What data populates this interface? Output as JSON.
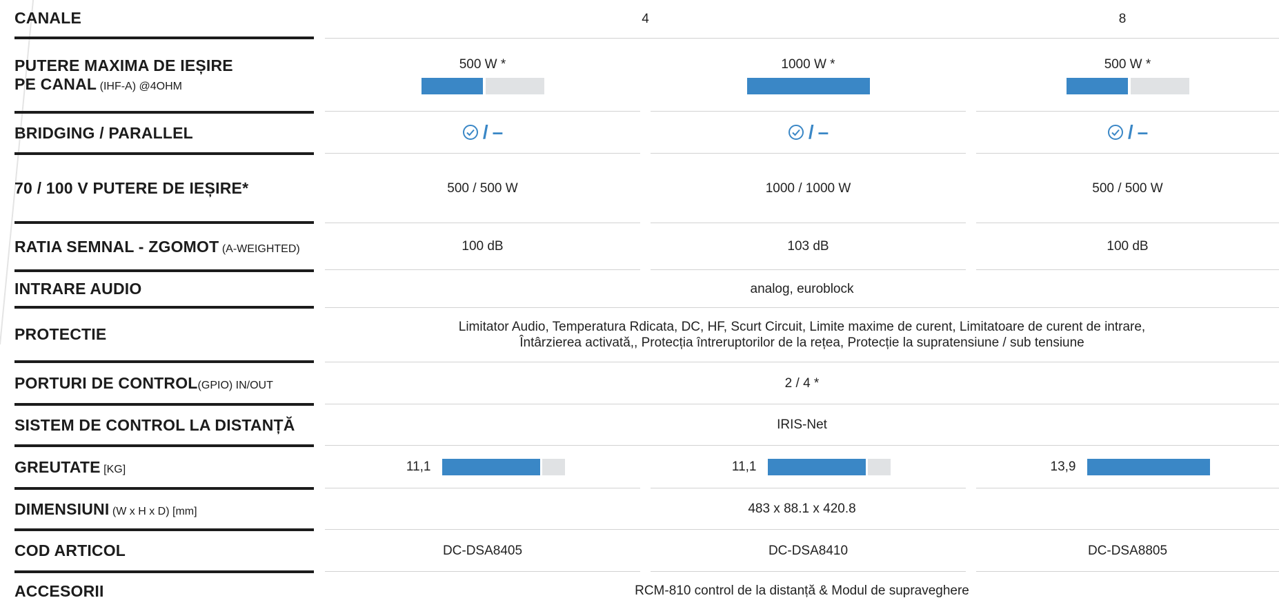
{
  "rows": {
    "channels": {
      "label": "CANALE",
      "values": [
        "4",
        "8"
      ]
    },
    "max_power": {
      "label_main": "PUTERE MAXIMA DE IEȘIRE",
      "label_main2": "PE CANAL",
      "label_sub": "(IHF-A) @4OHM",
      "values": [
        "500 W *",
        "1000 W *",
        "500 W *"
      ],
      "bar_fraction": [
        0.5,
        1.0,
        0.5
      ]
    },
    "bridging": {
      "label": "BRIDGING / PARALLEL",
      "separator": "/",
      "dash": "–"
    },
    "v_output": {
      "label": "70 / 100 V PUTERE DE IEȘIRE*",
      "values": [
        "500 / 500 W",
        "1000 / 1000 W",
        "500 / 500 W"
      ]
    },
    "snr": {
      "label_main": "RATIA SEMNAL - ZGOMOT",
      "label_sub": "(A-WEIGHTED)",
      "values": [
        "100 dB",
        "103 dB",
        "100 dB"
      ]
    },
    "audio_input": {
      "label": "INTRARE AUDIO",
      "value": "analog, euroblock"
    },
    "protection": {
      "label": "PROTECTIE",
      "line1": "Limitator Audio, Temperatura Rdicata, DC, HF, Scurt Circuit, Limite maxime de curent, Limitatoare de curent de intrare,",
      "line2": "Întârzierea activată,, Protecția întreruptorilor de la rețea, Protecție la supratensiune / sub tensiune"
    },
    "control_ports": {
      "label_main": "PORTURI DE CONTROL",
      "label_sub": "(GPIO) IN/OUT",
      "value": "2 / 4 *"
    },
    "remote": {
      "label": "SISTEM DE CONTROL LA DISTANȚĂ",
      "value": "IRIS-Net"
    },
    "weight": {
      "label_main": "GREUTATE",
      "label_sub": "[KG]",
      "values": [
        "11,1",
        "11,1",
        "13,9"
      ],
      "bar_fraction": [
        0.8,
        0.8,
        1.0
      ]
    },
    "dimensions": {
      "label_main": "DIMENSIUNI",
      "label_sub": "(W x H x D) [mm]",
      "value": "483 x 88.1 x 420.8"
    },
    "article": {
      "label": "COD ARTICOL",
      "values": [
        "DC-DSA8405",
        "DC-DSA8410",
        "DC-DSA8805"
      ]
    },
    "accessories": {
      "label": "ACCESORII",
      "value": "RCM-810 control de la distanță & Modul de supraveghere"
    }
  },
  "colors": {
    "accent": "#3a87c6",
    "bar_empty": "#e0e2e4",
    "rule": "#1c1c1c"
  },
  "icons": {
    "bridging": "check-circle-icon"
  }
}
